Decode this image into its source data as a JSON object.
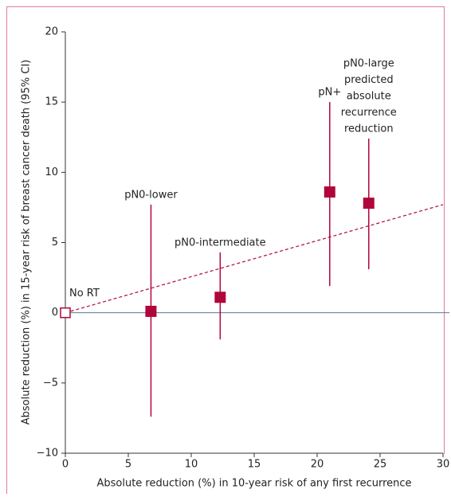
{
  "chart_data": {
    "type": "scatter",
    "x_label": "Absolute reduction (%) in 10-year risk of any first recurrence",
    "y_label": "Absolute reduction (%) in 15-year risk of breast cancer death (95% CI)",
    "xlim": [
      0,
      30
    ],
    "xticks": [
      0,
      5,
      10,
      15,
      20,
      25,
      30
    ],
    "ylim": [
      -10,
      20
    ],
    "yticks": [
      {
        "value": -10,
        "label": "−10"
      },
      {
        "value": -5,
        "label": "−5"
      },
      0,
      5,
      10,
      15,
      20
    ],
    "series": [
      {
        "color": "#b0063a",
        "x": [
          0,
          6.8,
          12.3,
          21.0,
          24.1
        ],
        "values": [
          0,
          0.1,
          1.1,
          8.6,
          7.8
        ],
        "ci_low": [
          null,
          -7.4,
          -1.9,
          1.9,
          3.1
        ],
        "ci_high": [
          null,
          7.7,
          4.3,
          15.0,
          12.4
        ],
        "labels": [
          [
            "No RT"
          ],
          [
            "pN0-lower"
          ],
          [
            "pN0-intermediate"
          ],
          [
            "pN+"
          ],
          [
            "pN0-large",
            "predicted",
            "absolute",
            "recurrence",
            "reduction"
          ]
        ]
      }
    ],
    "trend_line": {
      "x": [
        0,
        30
      ],
      "y": [
        0,
        7.7
      ],
      "color": "#b0063a"
    },
    "zero_line_color": "#5a7a8a"
  }
}
